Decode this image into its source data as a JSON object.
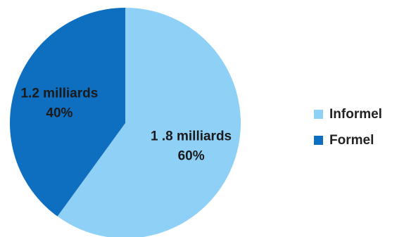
{
  "chart_data": {
    "type": "pie",
    "categories": [
      "Informel",
      "Formel"
    ],
    "values": [
      60,
      40
    ],
    "value_labels": [
      "1 .8 milliards",
      "1.2 milliards"
    ],
    "percent_labels": [
      "60%",
      "40%"
    ],
    "colors": [
      "#8fd0f7",
      "#0e6ec0"
    ],
    "legend": "right"
  },
  "legend": {
    "items": [
      {
        "label": "Informel",
        "color": "#8fd0f7"
      },
      {
        "label": "Formel",
        "color": "#0e6ec0"
      }
    ]
  }
}
